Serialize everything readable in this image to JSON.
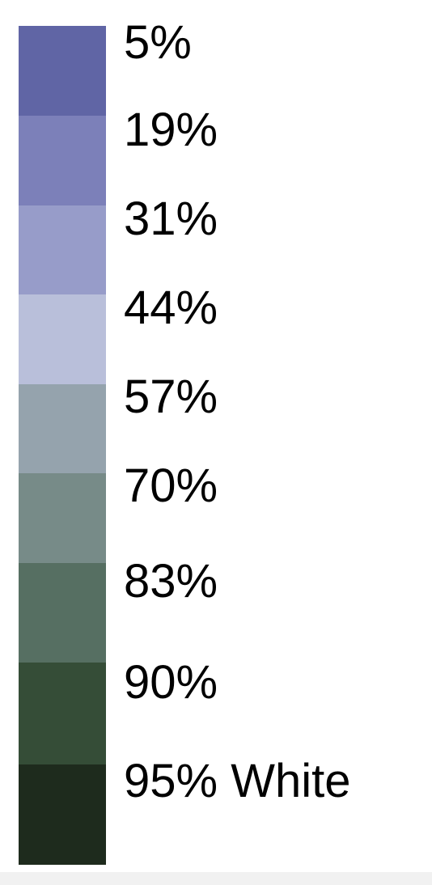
{
  "chart_data": {
    "type": "legend",
    "title": "",
    "items": [
      {
        "label": "5%",
        "color": "#6065a5"
      },
      {
        "label": "19%",
        "color": "#7c80b9"
      },
      {
        "label": "31%",
        "color": "#979cc9"
      },
      {
        "label": "44%",
        "color": "#b9bfda"
      },
      {
        "label": "57%",
        "color": "#95a3ad"
      },
      {
        "label": "70%",
        "color": "#778b88"
      },
      {
        "label": "83%",
        "color": "#566f62"
      },
      {
        "label": "90%",
        "color": "#354d37"
      },
      {
        "label": "95% White",
        "color": "#1e2b1d"
      }
    ]
  }
}
